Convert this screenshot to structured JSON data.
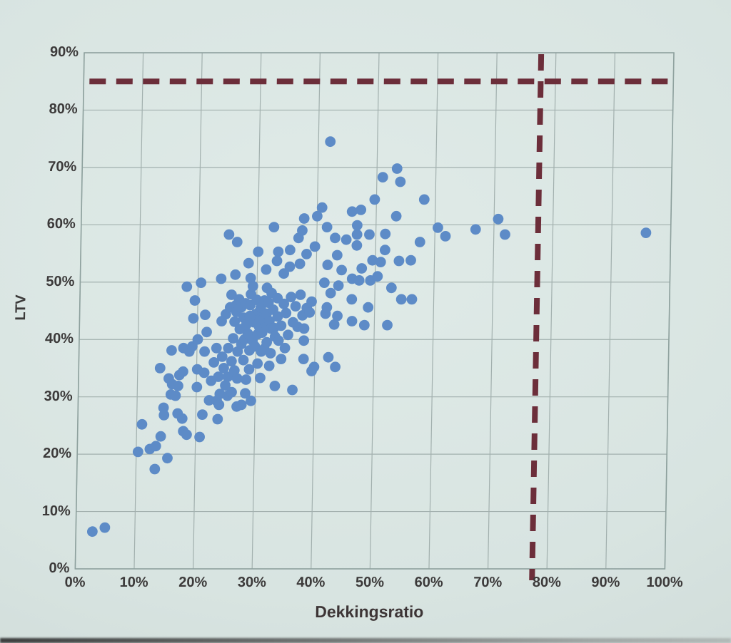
{
  "chart_data": {
    "type": "scatter",
    "title": "",
    "xlabel": "Dekkingsratio",
    "ylabel": "LTV",
    "xlim": [
      0,
      100
    ],
    "ylim": [
      0,
      90
    ],
    "grid": true,
    "x_ticks": [
      "0%",
      "10%",
      "20%",
      "30%",
      "40%",
      "50%",
      "60%",
      "70%",
      "80%",
      "90%",
      "100%"
    ],
    "y_ticks": [
      "0%",
      "10%",
      "20%",
      "30%",
      "40%",
      "50%",
      "60%",
      "70%",
      "80%",
      "90%"
    ],
    "reference_lines": [
      {
        "axis": "y",
        "value": 85,
        "style": "dashed",
        "color": "#6c2e3a"
      },
      {
        "axis": "x",
        "value": 77.5,
        "style": "dashed",
        "color": "#6c2e3a"
      }
    ],
    "series": [
      {
        "name": "points",
        "color": "#5d8bc7",
        "marker_radius": 7.4,
        "points": [
          [
            2.8,
            6.5
          ],
          [
            4.9,
            7.2
          ],
          [
            10.3,
            20.4
          ],
          [
            10.9,
            25.2
          ],
          [
            12.3,
            20.9
          ],
          [
            13.2,
            17.4
          ],
          [
            13.3,
            21.4
          ],
          [
            13.8,
            35.0
          ],
          [
            14.1,
            23.1
          ],
          [
            14.5,
            28.1
          ],
          [
            14.6,
            26.8
          ],
          [
            15.3,
            19.3
          ],
          [
            15.3,
            33.2
          ],
          [
            15.7,
            30.4
          ],
          [
            15.7,
            38.1
          ],
          [
            15.9,
            32.2
          ],
          [
            16.5,
            30.2
          ],
          [
            16.9,
            27.1
          ],
          [
            16.9,
            31.9
          ],
          [
            17.1,
            33.8
          ],
          [
            17.7,
            26.2
          ],
          [
            17.7,
            34.4
          ],
          [
            17.7,
            38.5
          ],
          [
            17.9,
            24.0
          ],
          [
            18.1,
            49.2
          ],
          [
            18.5,
            23.4
          ],
          [
            18.7,
            37.9
          ],
          [
            19.2,
            38.8
          ],
          [
            19.3,
            43.7
          ],
          [
            19.5,
            46.8
          ],
          [
            20.1,
            31.7
          ],
          [
            20.1,
            34.8
          ],
          [
            20.1,
            40.0
          ],
          [
            20.5,
            49.9
          ],
          [
            20.7,
            23.0
          ],
          [
            21.1,
            26.9
          ],
          [
            21.3,
            34.2
          ],
          [
            21.3,
            37.9
          ],
          [
            21.3,
            44.3
          ],
          [
            21.6,
            41.3
          ],
          [
            22.2,
            29.4
          ],
          [
            22.5,
            32.8
          ],
          [
            22.9,
            36.0
          ],
          [
            23.3,
            38.5
          ],
          [
            23.5,
            29.3
          ],
          [
            23.7,
            26.1
          ],
          [
            23.7,
            33.5
          ],
          [
            23.9,
            28.6
          ],
          [
            23.9,
            50.6
          ],
          [
            24.0,
            30.5
          ],
          [
            24.1,
            43.2
          ],
          [
            24.3,
            37.0
          ],
          [
            24.6,
            35.0
          ],
          [
            24.8,
            44.4
          ],
          [
            24.9,
            32.0
          ],
          [
            25.1,
            58.3
          ],
          [
            25.3,
            30.2
          ],
          [
            25.3,
            33.5
          ],
          [
            25.3,
            38.5
          ],
          [
            25.5,
            45.6
          ],
          [
            25.7,
            47.8
          ],
          [
            25.9,
            36.2
          ],
          [
            26.0,
            30.8
          ],
          [
            26.1,
            40.2
          ],
          [
            26.3,
            43.1
          ],
          [
            26.3,
            51.3
          ],
          [
            26.4,
            34.6
          ],
          [
            26.5,
            46.0
          ],
          [
            26.5,
            57.0
          ],
          [
            26.6,
            44.8
          ],
          [
            26.9,
            28.3
          ],
          [
            26.9,
            33.2
          ],
          [
            26.9,
            37.9
          ],
          [
            27.0,
            47.0
          ],
          [
            27.2,
            41.8
          ],
          [
            27.4,
            45.6
          ],
          [
            27.5,
            39.2
          ],
          [
            27.7,
            28.6
          ],
          [
            27.8,
            43.8
          ],
          [
            27.9,
            36.4
          ],
          [
            28.0,
            40.0
          ],
          [
            28.1,
            46.3
          ],
          [
            28.3,
            30.6
          ],
          [
            28.3,
            42.6
          ],
          [
            28.4,
            33.0
          ],
          [
            28.5,
            53.3
          ],
          [
            28.6,
            41.0
          ],
          [
            28.9,
            34.8
          ],
          [
            28.9,
            38.1
          ],
          [
            28.9,
            44.1
          ],
          [
            28.9,
            46.0
          ],
          [
            28.9,
            50.7
          ],
          [
            29.0,
            47.9
          ],
          [
            29.3,
            29.3
          ],
          [
            29.3,
            49.3
          ],
          [
            29.4,
            39.8
          ],
          [
            29.6,
            43.0
          ],
          [
            29.8,
            38.8
          ],
          [
            29.8,
            44.4
          ],
          [
            30.0,
            46.9
          ],
          [
            30.1,
            55.3
          ],
          [
            30.2,
            40.9
          ],
          [
            30.3,
            35.8
          ],
          [
            30.4,
            44.8
          ],
          [
            30.5,
            42.2
          ],
          [
            30.6,
            43.5
          ],
          [
            30.7,
            45.6
          ],
          [
            30.8,
            33.3
          ],
          [
            30.9,
            37.9
          ],
          [
            31.0,
            41.2
          ],
          [
            31.2,
            43.6
          ],
          [
            31.3,
            46.8
          ],
          [
            31.4,
            38.4
          ],
          [
            31.5,
            52.2
          ],
          [
            31.7,
            44.5
          ],
          [
            31.7,
            49.0
          ],
          [
            31.8,
            39.5
          ],
          [
            31.9,
            42.6
          ],
          [
            32.0,
            46.4
          ],
          [
            32.2,
            43.2
          ],
          [
            32.3,
            35.4
          ],
          [
            32.5,
            37.6
          ],
          [
            32.5,
            41.9
          ],
          [
            32.5,
            48.1
          ],
          [
            32.7,
            59.6
          ],
          [
            32.8,
            45.2
          ],
          [
            33.0,
            42.0
          ],
          [
            33.2,
            40.5
          ],
          [
            33.3,
            31.9
          ],
          [
            33.3,
            53.7
          ],
          [
            33.5,
            47.2
          ],
          [
            33.5,
            55.3
          ],
          [
            33.6,
            44.0
          ],
          [
            33.8,
            39.8
          ],
          [
            34.2,
            42.4
          ],
          [
            34.3,
            36.6
          ],
          [
            34.5,
            51.5
          ],
          [
            34.6,
            46.2
          ],
          [
            34.9,
            38.5
          ],
          [
            35.0,
            44.6
          ],
          [
            35.4,
            40.8
          ],
          [
            35.5,
            52.7
          ],
          [
            35.5,
            55.6
          ],
          [
            35.8,
            47.4
          ],
          [
            36.2,
            43.0
          ],
          [
            36.3,
            31.2
          ],
          [
            36.6,
            45.8
          ],
          [
            36.9,
            57.7
          ],
          [
            37.0,
            42.2
          ],
          [
            37.2,
            53.2
          ],
          [
            37.4,
            47.8
          ],
          [
            37.5,
            59.0
          ],
          [
            37.8,
            44.2
          ],
          [
            37.8,
            61.1
          ],
          [
            38.1,
            36.6
          ],
          [
            38.1,
            39.8
          ],
          [
            38.1,
            41.9
          ],
          [
            38.3,
            54.9
          ],
          [
            38.5,
            45.5
          ],
          [
            39.0,
            44.7
          ],
          [
            39.3,
            46.6
          ],
          [
            39.5,
            34.5
          ],
          [
            39.7,
            56.2
          ],
          [
            39.9,
            35.2
          ],
          [
            40.0,
            61.5
          ],
          [
            40.8,
            63.0
          ],
          [
            41.4,
            49.9
          ],
          [
            41.7,
            44.5
          ],
          [
            41.7,
            59.6
          ],
          [
            41.9,
            45.6
          ],
          [
            41.9,
            53.0
          ],
          [
            42.0,
            74.5
          ],
          [
            42.3,
            36.9
          ],
          [
            42.5,
            48.1
          ],
          [
            43.1,
            57.7
          ],
          [
            43.2,
            42.6
          ],
          [
            43.5,
            35.2
          ],
          [
            43.5,
            54.7
          ],
          [
            43.7,
            44.1
          ],
          [
            43.8,
            49.4
          ],
          [
            44.3,
            52.1
          ],
          [
            45.0,
            57.4
          ],
          [
            45.9,
            62.3
          ],
          [
            46.1,
            47.0
          ],
          [
            46.1,
            50.6
          ],
          [
            46.2,
            43.2
          ],
          [
            46.8,
            56.4
          ],
          [
            46.8,
            58.3
          ],
          [
            46.8,
            59.9
          ],
          [
            47.3,
            50.3
          ],
          [
            47.4,
            62.6
          ],
          [
            47.7,
            52.4
          ],
          [
            48.3,
            42.5
          ],
          [
            48.9,
            45.6
          ],
          [
            48.9,
            58.3
          ],
          [
            49.2,
            50.3
          ],
          [
            49.5,
            53.8
          ],
          [
            49.7,
            64.4
          ],
          [
            50.4,
            51.0
          ],
          [
            50.9,
            53.5
          ],
          [
            51.0,
            68.3
          ],
          [
            51.6,
            55.6
          ],
          [
            51.6,
            58.4
          ],
          [
            52.2,
            42.5
          ],
          [
            52.8,
            49.0
          ],
          [
            53.4,
            61.5
          ],
          [
            53.4,
            69.8
          ],
          [
            54.0,
            53.7
          ],
          [
            54.0,
            67.5
          ],
          [
            54.5,
            47.0
          ],
          [
            56.0,
            53.8
          ],
          [
            56.3,
            47.0
          ],
          [
            57.5,
            57.0
          ],
          [
            58.1,
            64.4
          ],
          [
            60.5,
            59.5
          ],
          [
            61.8,
            58.0
          ],
          [
            66.9,
            59.2
          ],
          [
            70.7,
            61.0
          ],
          [
            71.9,
            58.3
          ],
          [
            95.8,
            58.6
          ]
        ]
      }
    ],
    "colors": {
      "background": "#d8e4e1",
      "gridline": "#a2b0ae",
      "plot_border": "#8da09d",
      "dot": "#5d8bc7",
      "reference_dash": "#6c2e3a",
      "tick_text": "#3c3a3a"
    },
    "legend": "none"
  }
}
